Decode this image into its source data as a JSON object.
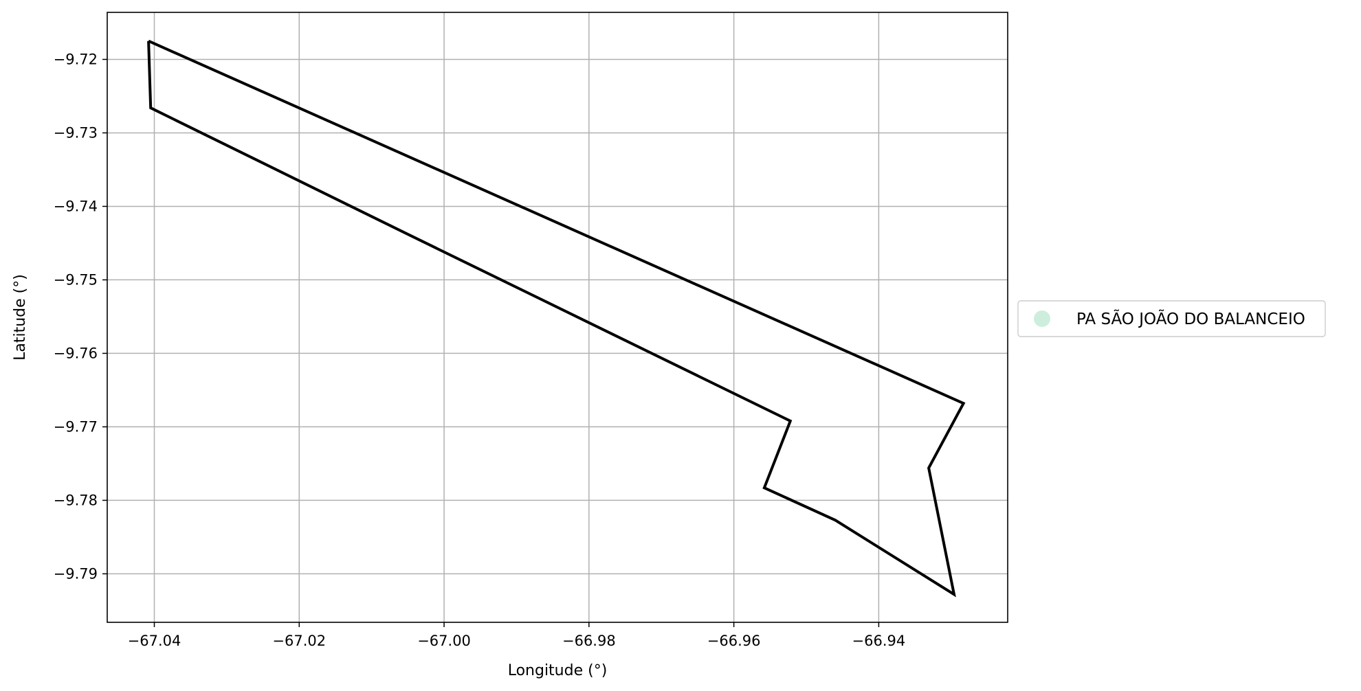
{
  "chart_data": {
    "type": "map-outline",
    "title": "",
    "xlabel": "Longitude (°)",
    "ylabel": "Latitude (°)",
    "xlim": [
      -67.0465,
      -66.9222
    ],
    "ylim": [
      -9.7966,
      -9.7136
    ],
    "grid": true,
    "xticks": [
      -67.04,
      -67.02,
      -67.0,
      -66.98,
      -66.96,
      -66.94
    ],
    "xtick_labels": [
      "−67.04",
      "−67.02",
      "−67.00",
      "−66.98",
      "−66.96",
      "−66.94"
    ],
    "yticks": [
      -9.72,
      -9.73,
      -9.74,
      -9.75,
      -9.76,
      -9.77,
      -9.78,
      -9.79
    ],
    "ytick_labels": [
      "−9.72",
      "−9.73",
      "−9.74",
      "−9.75",
      "−9.76",
      "−9.77",
      "−9.78",
      "−9.79"
    ],
    "legend": {
      "placement": "right-outside",
      "entries": [
        {
          "label": "PA SÃO JOÃO DO BALANCEIO",
          "color": "#cdeedd",
          "marker": "circle"
        }
      ]
    },
    "series": [
      {
        "name": "PA SÃO JOÃO DO BALANCEIO",
        "stroke": "#000000",
        "fill": "none",
        "points": [
          [
            -67.0408,
            -9.7175
          ],
          [
            -66.9283,
            -9.7668
          ],
          [
            -66.9331,
            -9.7756
          ],
          [
            -66.9296,
            -9.7928
          ],
          [
            -66.946,
            -9.7827
          ],
          [
            -66.9558,
            -9.7783
          ],
          [
            -66.9522,
            -9.7692
          ],
          [
            -67.005,
            -9.7438
          ],
          [
            -67.0405,
            -9.7266
          ],
          [
            -67.0408,
            -9.7175
          ]
        ]
      }
    ]
  }
}
